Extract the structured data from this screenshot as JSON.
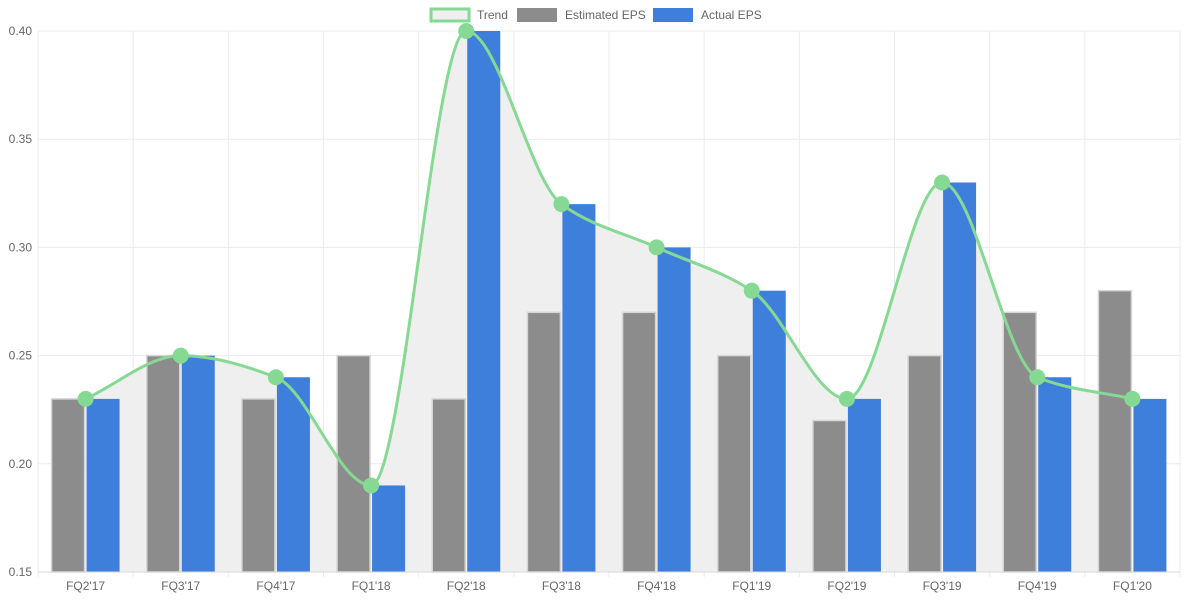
{
  "chart_data": {
    "type": "bar",
    "categories": [
      "FQ2'17",
      "FQ3'17",
      "FQ4'17",
      "FQ1'18",
      "FQ2'18",
      "FQ3'18",
      "FQ4'18",
      "FQ1'19",
      "FQ2'19",
      "FQ3'19",
      "FQ4'19",
      "FQ1'20"
    ],
    "series": [
      {
        "name": "Trend",
        "kind": "line",
        "color": "#86d993",
        "values": [
          0.23,
          0.25,
          0.24,
          0.19,
          0.4,
          0.32,
          0.3,
          0.28,
          0.23,
          0.33,
          0.24,
          0.23
        ]
      },
      {
        "name": "Estimated EPS",
        "kind": "bar",
        "color": "#8c8c8c",
        "values": [
          0.23,
          0.25,
          0.23,
          0.25,
          0.23,
          0.27,
          0.27,
          0.25,
          0.22,
          0.25,
          0.27,
          0.28
        ]
      },
      {
        "name": "Actual EPS",
        "kind": "bar",
        "color": "#3f7fdc",
        "values": [
          0.23,
          0.25,
          0.24,
          0.19,
          0.4,
          0.32,
          0.3,
          0.28,
          0.23,
          0.33,
          0.24,
          0.23
        ]
      }
    ],
    "y_ticks": [
      "0.15",
      "0.20",
      "0.25",
      "0.30",
      "0.35",
      "0.40"
    ],
    "ylim": [
      0.15,
      0.4
    ],
    "title": "",
    "xlabel": "",
    "ylabel": "",
    "legend_position": "top-center",
    "grid": true,
    "trend_fill_color": "#efefef"
  }
}
